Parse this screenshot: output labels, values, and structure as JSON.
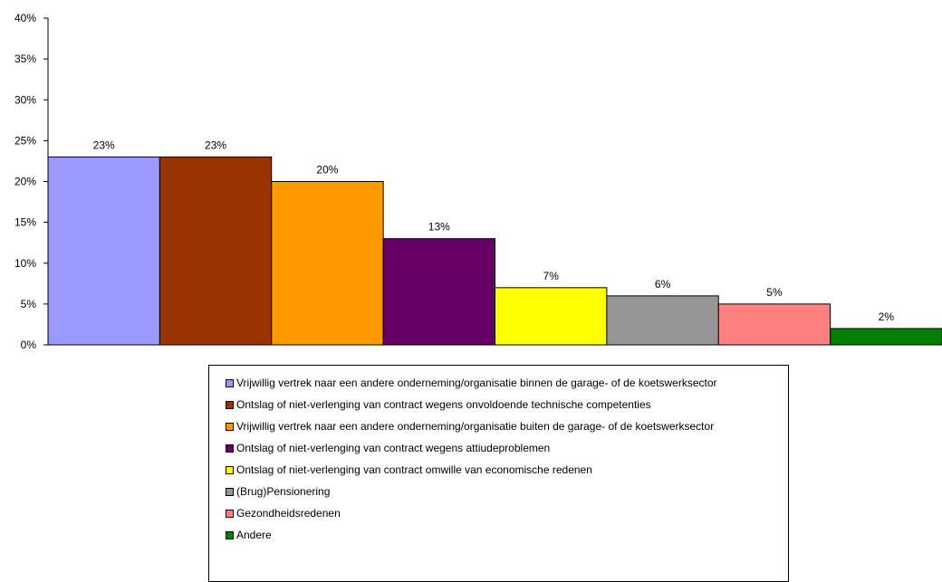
{
  "chart_data": {
    "type": "bar",
    "ylim": [
      0,
      40
    ],
    "yticks": [
      "0%",
      "5%",
      "10%",
      "15%",
      "20%",
      "25%",
      "30%",
      "35%",
      "40%"
    ],
    "grid": false,
    "legend_position": "bottom",
    "series": [
      {
        "name": "Vrijwillig vertrek naar een andere onderneming/organisatie binnen de garage- of de koetswerksector",
        "value": 23,
        "label": "23%",
        "color": "#9999ff"
      },
      {
        "name": "Ontslag of niet-verlenging van contract wegens onvoldoende technische competenties",
        "value": 23,
        "label": "23%",
        "color": "#993300"
      },
      {
        "name": "Vrijwillig vertrek naar een andere onderneming/organisatie buiten de garage- of de koetswerksector",
        "value": 20,
        "label": "20%",
        "color": "#ff9900"
      },
      {
        "name": "Ontslag of niet-verlenging van contract wegens attiudeproblemen",
        "value": 13,
        "label": "13%",
        "color": "#660066"
      },
      {
        "name": "Ontslag of niet-verlenging van contract omwille van economische redenen",
        "value": 7,
        "label": "7%",
        "color": "#ffff00"
      },
      {
        "name": "(Brug)Pensionering",
        "value": 6,
        "label": "6%",
        "color": "#969696"
      },
      {
        "name": "Gezondheidsredenen",
        "value": 5,
        "label": "5%",
        "color": "#ff8080"
      },
      {
        "name": "Andere",
        "value": 2,
        "label": "2%",
        "color": "#008000"
      }
    ]
  }
}
